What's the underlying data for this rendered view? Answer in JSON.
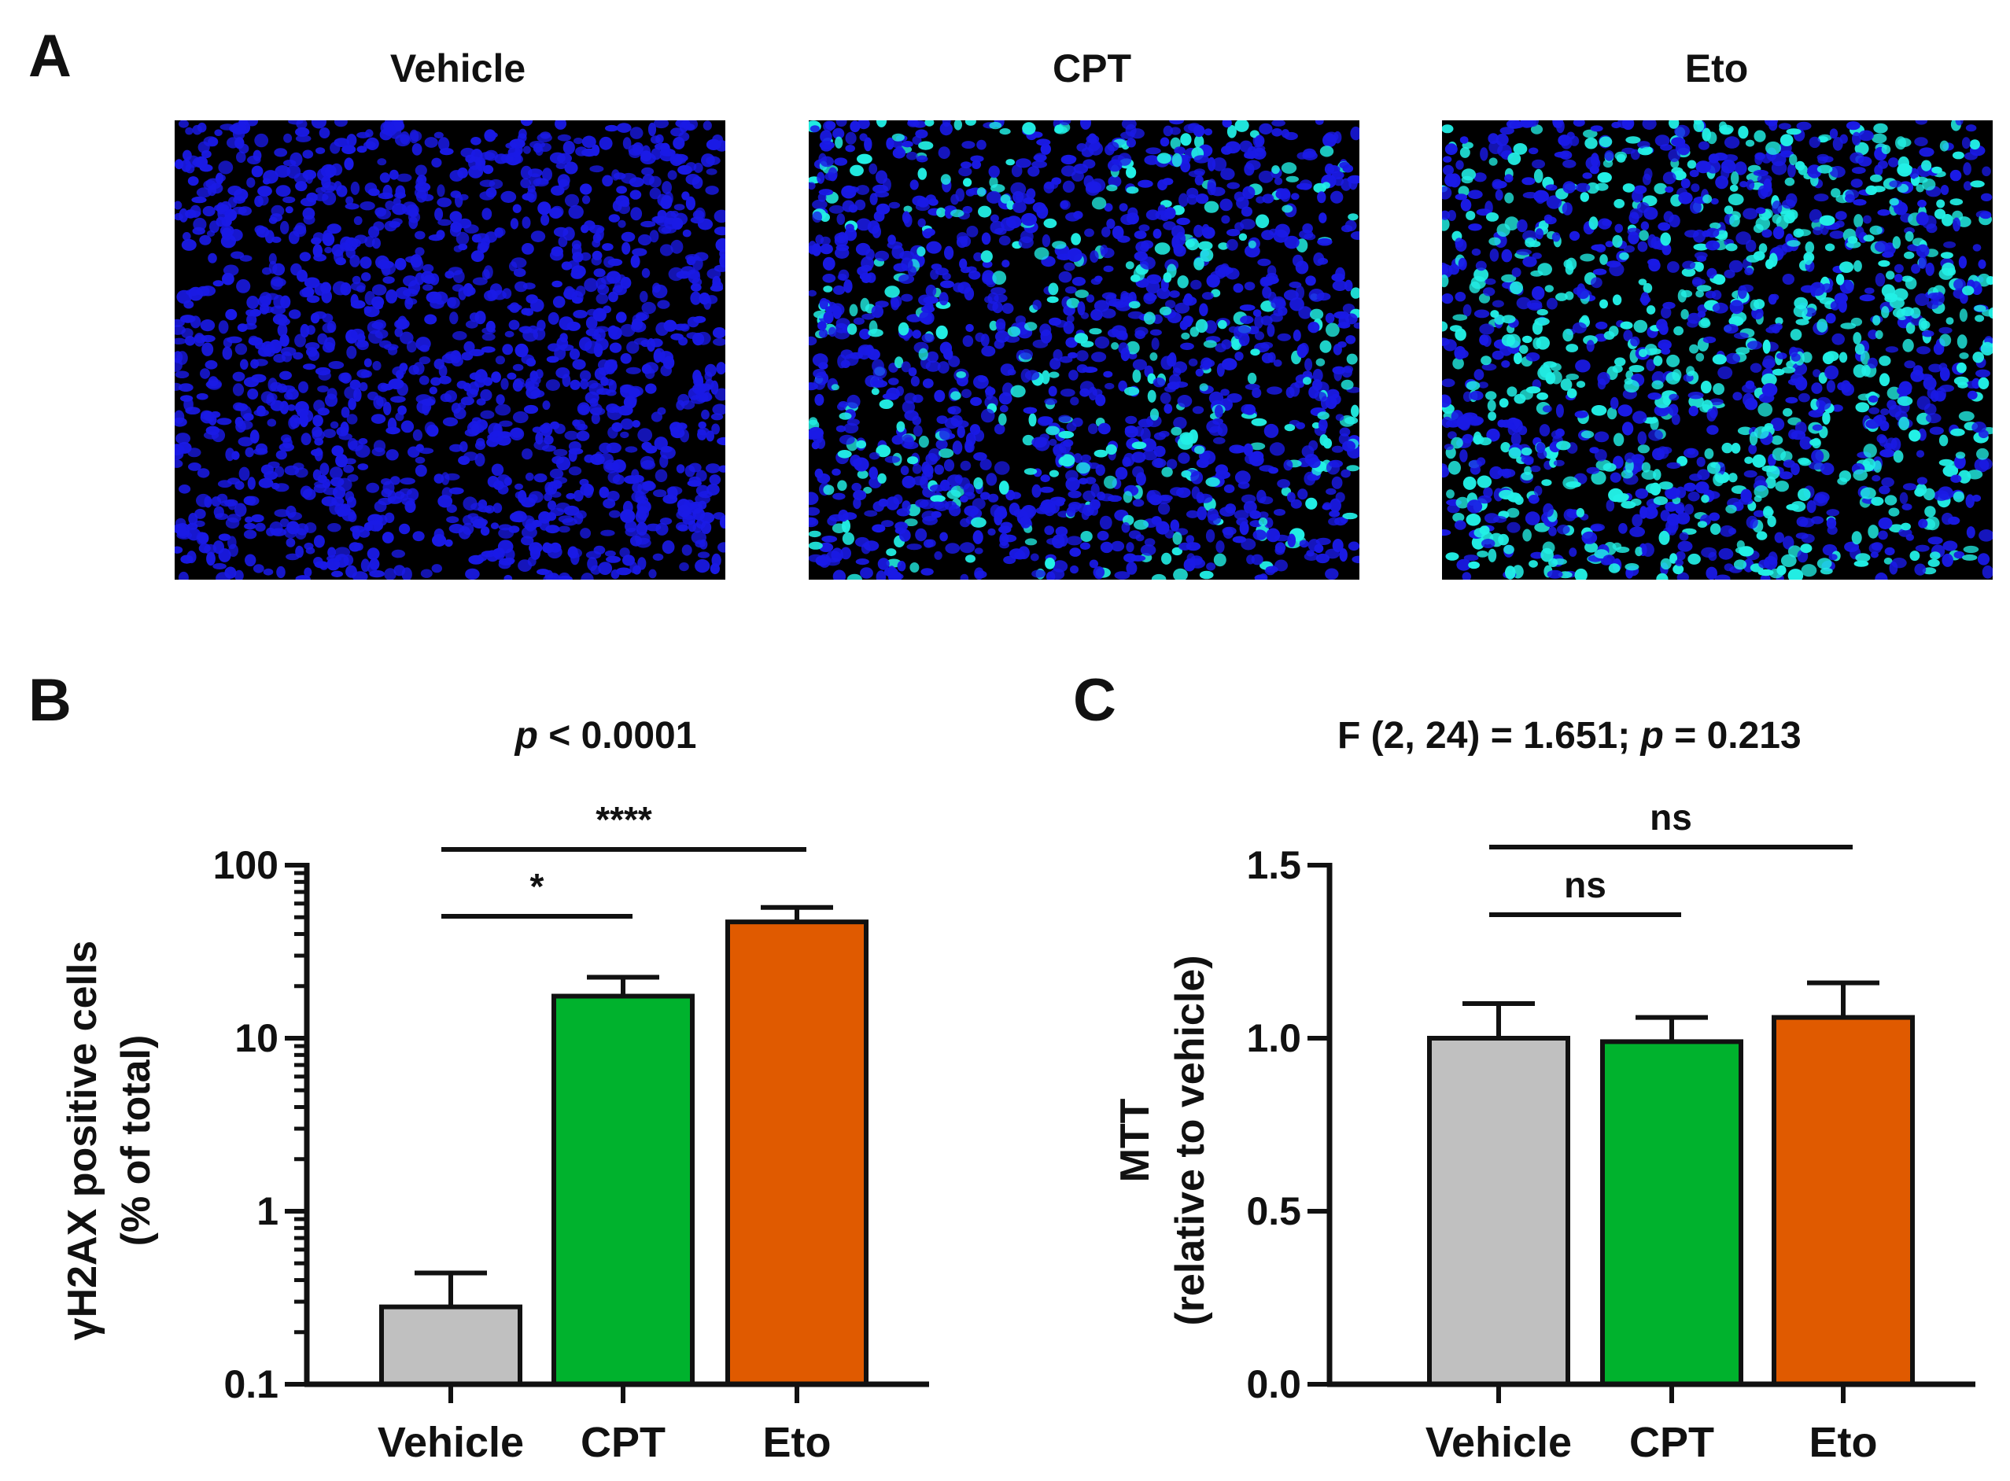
{
  "panel_a": {
    "letter": "A",
    "images": [
      {
        "title": "Vehicle",
        "positive_level": 0.0
      },
      {
        "title": "CPT",
        "positive_level": 0.22
      },
      {
        "title": "Eto",
        "positive_level": 0.45
      }
    ],
    "colors": {
      "nucleus": "#1a1ae6",
      "positive": "#22f0e6",
      "background": "#000000"
    }
  },
  "panel_b": {
    "letter": "B",
    "stat_prefix": "p",
    "stat_rest": " < 0.0001",
    "sig_low": "*",
    "sig_high": "****"
  },
  "panel_c": {
    "letter": "C",
    "stat_part1": "F (2, 24) = 1.651; ",
    "stat_p": "p",
    "stat_part2": " = 0.213",
    "sig_low": "ns",
    "sig_high": "ns"
  },
  "chart_data": [
    {
      "type": "bar",
      "panel": "B",
      "categories": [
        "Vehicle",
        "CPT",
        "Eto"
      ],
      "values": [
        0.28,
        17.5,
        47
      ],
      "error_upper": [
        0.44,
        22.5,
        57
      ],
      "colors": [
        "#c0c0c0",
        "#00b22d",
        "#e05a00"
      ],
      "title": "p < 0.0001",
      "xlabel": "",
      "ylabel": "γH2AX positive cells",
      "ylabel2": "(% of total)",
      "yscale": "log",
      "ylim": [
        0.1,
        100
      ],
      "yticks": [
        0.1,
        1,
        10,
        100
      ],
      "ytick_labels": [
        "0.1",
        "1",
        "10",
        "100"
      ],
      "comparisons": [
        {
          "from": "Vehicle",
          "to": "CPT",
          "label": "*"
        },
        {
          "from": "Vehicle",
          "to": "Eto",
          "label": "****"
        }
      ]
    },
    {
      "type": "bar",
      "panel": "C",
      "categories": [
        "Vehicle",
        "CPT",
        "Eto"
      ],
      "values": [
        1.0,
        0.99,
        1.06
      ],
      "error_upper": [
        1.1,
        1.06,
        1.16
      ],
      "colors": [
        "#c0c0c0",
        "#00b22d",
        "#e05a00"
      ],
      "title": "F (2, 24) = 1.651; p = 0.213",
      "xlabel": "",
      "ylabel": "MTT",
      "ylabel2": "(relative to vehicle)",
      "yscale": "linear",
      "ylim": [
        0,
        1.5
      ],
      "yticks": [
        0,
        0.5,
        1.0,
        1.5
      ],
      "ytick_labels": [
        "0.0",
        "0.5",
        "1.0",
        "1.5"
      ],
      "comparisons": [
        {
          "from": "Vehicle",
          "to": "CPT",
          "label": "ns"
        },
        {
          "from": "Vehicle",
          "to": "Eto",
          "label": "ns"
        }
      ]
    }
  ]
}
